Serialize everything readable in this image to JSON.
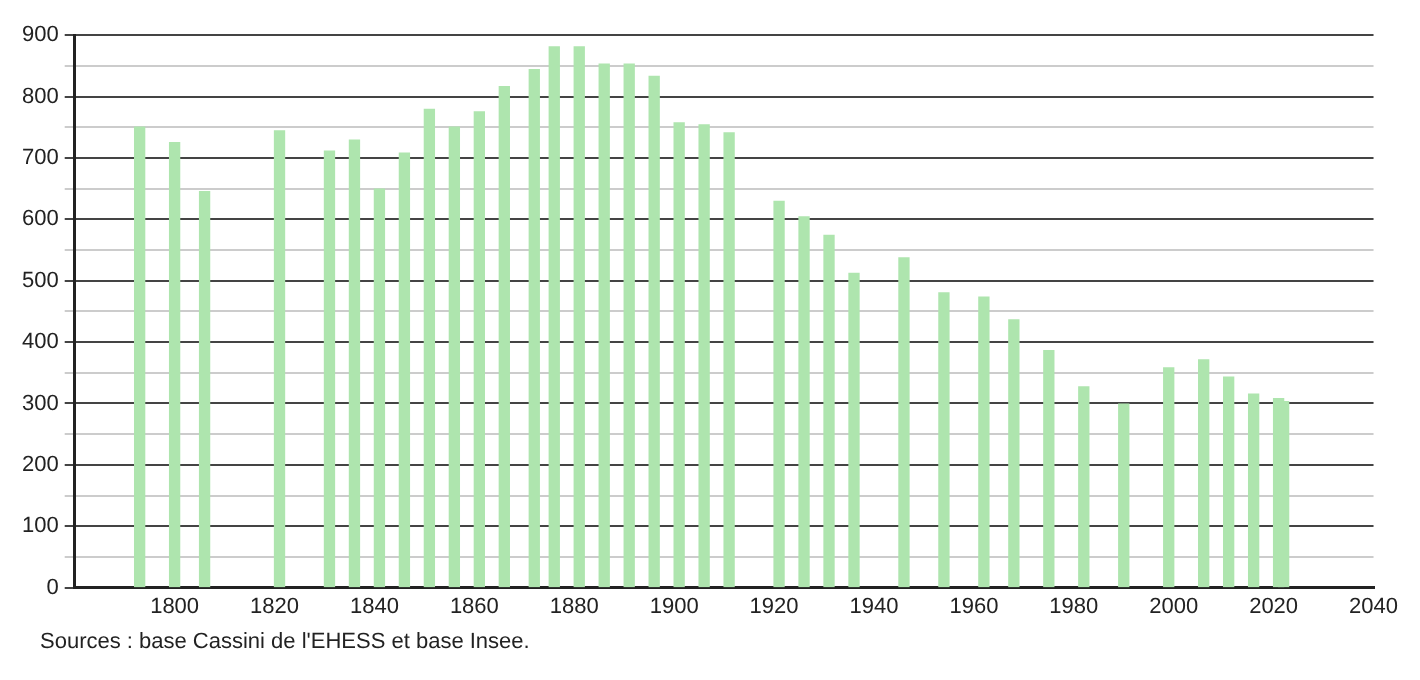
{
  "chart_data": {
    "type": "bar",
    "x": [
      1793,
      1800,
      1806,
      1821,
      1831,
      1836,
      1841,
      1846,
      1851,
      1856,
      1861,
      1866,
      1872,
      1876,
      1881,
      1886,
      1891,
      1896,
      1901,
      1906,
      1911,
      1921,
      1926,
      1931,
      1936,
      1946,
      1954,
      1962,
      1968,
      1975,
      1982,
      1990,
      1999,
      2006,
      2011,
      2016,
      2021,
      2022
    ],
    "values": [
      750,
      725,
      645,
      744,
      711,
      729,
      649,
      708,
      779,
      750,
      775,
      816,
      844,
      881,
      881,
      853,
      853,
      833,
      757,
      754,
      741,
      629,
      604,
      574,
      512,
      537,
      480,
      473,
      436,
      386,
      327,
      299,
      358,
      371,
      343,
      315,
      308,
      303
    ],
    "color": "#aee5ae",
    "xlim": [
      1780,
      2040
    ],
    "xticks": [
      1800,
      1820,
      1840,
      1860,
      1880,
      1900,
      1920,
      1940,
      1960,
      1980,
      2000,
      2020,
      2040
    ],
    "ylim": [
      0,
      900
    ],
    "yticks": [
      0,
      {
        "value": 50,
        "label": null
      },
      100,
      {
        "value": 150,
        "label": null
      },
      200,
      {
        "value": 250,
        "label": null
      },
      300,
      {
        "value": 350,
        "label": null
      },
      400,
      {
        "value": 450,
        "label": null
      },
      500,
      {
        "value": 550,
        "label": null
      },
      600,
      {
        "value": 650,
        "label": null
      },
      700,
      {
        "value": 750,
        "label": null
      },
      800,
      {
        "value": 850,
        "label": null
      },
      900
    ],
    "grid": "y",
    "legend": false,
    "annotations": [
      "Sources : base Cassini de l'EHESS et base Insee."
    ]
  }
}
